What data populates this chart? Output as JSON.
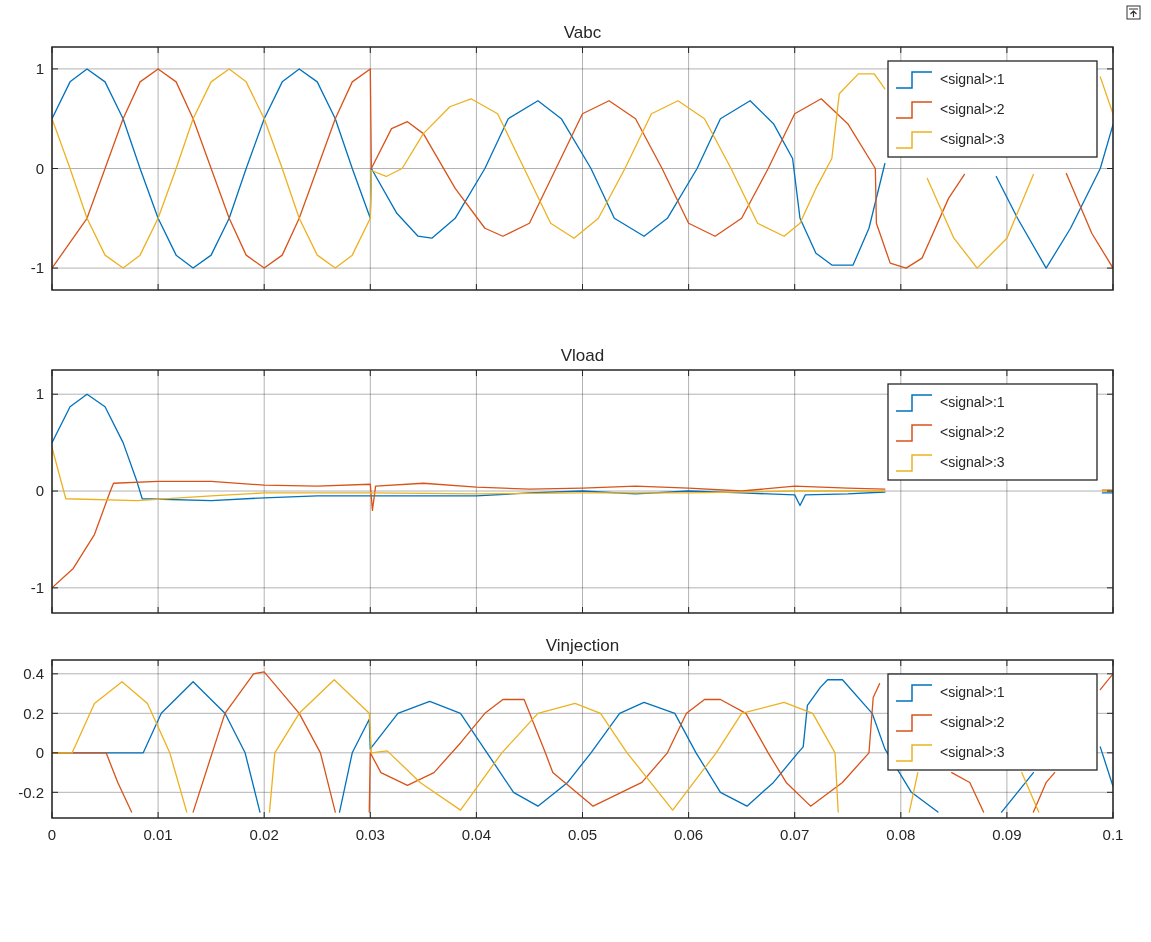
{
  "chart_data": [
    {
      "type": "line",
      "title": "Vabc",
      "xlim": [
        0,
        0.1
      ],
      "xticks": [
        0,
        0.01,
        0.02,
        0.03,
        0.04,
        0.05,
        0.06,
        0.07,
        0.08,
        0.09,
        0.1
      ],
      "ylim": [
        -1.22,
        1.22
      ],
      "yticks": [
        -1,
        0,
        1
      ],
      "grid": true,
      "legend": "top right",
      "tick_labels": "y",
      "series": [
        {
          "name": "<signal>:1",
          "color": "#0072bd",
          "x": [
            0,
            0.0017,
            0.0033,
            0.005,
            0.0067,
            0.0083,
            0.01,
            0.0117,
            0.0133,
            0.015,
            0.0167,
            0.0183,
            0.02,
            0.0217,
            0.0233,
            0.025,
            0.0267,
            0.0283,
            0.03,
            0.0301,
            0.0325,
            0.0345,
            0.0358,
            0.038,
            0.0408,
            0.043,
            0.0458,
            0.048,
            0.0508,
            0.053,
            0.0558,
            0.058,
            0.0608,
            0.063,
            0.0658,
            0.068,
            0.0698,
            0.0705,
            0.072,
            0.0735,
            0.0755,
            0.077,
            0.0785,
            0.084,
            0.089,
            0.091,
            0.0937,
            0.096,
            0.0988,
            0.1
          ],
          "values": [
            0.5,
            0.87,
            1,
            0.87,
            0.5,
            0,
            -0.5,
            -0.87,
            -1,
            -0.87,
            -0.5,
            0,
            0.5,
            0.87,
            1,
            0.87,
            0.5,
            0,
            -0.5,
            0,
            -0.45,
            -0.68,
            -0.7,
            -0.5,
            0,
            0.5,
            0.68,
            0.5,
            0,
            -0.5,
            -0.68,
            -0.5,
            0,
            0.5,
            0.68,
            0.45,
            0.1,
            -0.5,
            -0.85,
            -0.97,
            -0.97,
            -0.6,
            0.05,
            null,
            -0.08,
            -0.5,
            -1,
            -0.6,
            0,
            0.44
          ]
        },
        {
          "name": "<signal>:2",
          "color": "#d95319",
          "x": [
            0,
            0.0033,
            0.005,
            0.0067,
            0.0083,
            0.01,
            0.0117,
            0.0133,
            0.015,
            0.0167,
            0.0183,
            0.02,
            0.0217,
            0.0233,
            0.025,
            0.0267,
            0.0283,
            0.03,
            0.0301,
            0.032,
            0.0335,
            0.035,
            0.038,
            0.0408,
            0.0425,
            0.045,
            0.0475,
            0.05,
            0.0525,
            0.055,
            0.0575,
            0.06,
            0.0625,
            0.065,
            0.0675,
            0.07,
            0.0725,
            0.075,
            0.0776,
            0.0777,
            0.079,
            0.0805,
            0.082,
            0.0845,
            0.086,
            0.09,
            0.0956,
            0.098,
            0.1
          ],
          "values": [
            -1,
            -0.5,
            0,
            0.5,
            0.87,
            1,
            0.87,
            0.5,
            0,
            -0.5,
            -0.87,
            -1,
            -0.87,
            -0.5,
            0,
            0.5,
            0.87,
            1,
            0,
            0.4,
            0.47,
            0.35,
            -0.2,
            -0.6,
            -0.68,
            -0.55,
            0,
            0.55,
            0.68,
            0.5,
            0,
            -0.55,
            -0.68,
            -0.5,
            0,
            0.55,
            0.7,
            0.45,
            0,
            -0.55,
            -0.95,
            -1,
            -0.9,
            -0.3,
            -0.06,
            null,
            -0.05,
            -0.65,
            -1
          ]
        },
        {
          "name": "<signal>:3",
          "color": "#edb120",
          "x": [
            0,
            0.0017,
            0.0033,
            0.005,
            0.0067,
            0.0083,
            0.01,
            0.0117,
            0.0133,
            0.015,
            0.0167,
            0.0183,
            0.02,
            0.0217,
            0.0233,
            0.025,
            0.0267,
            0.0283,
            0.03,
            0.0301,
            0.0315,
            0.033,
            0.035,
            0.0375,
            0.0395,
            0.042,
            0.0445,
            0.047,
            0.0492,
            0.0515,
            0.054,
            0.0565,
            0.059,
            0.0615,
            0.064,
            0.0665,
            0.069,
            0.0705,
            0.072,
            0.0735,
            0.0742,
            0.076,
            0.0775,
            0.0785,
            0.08,
            0.0825,
            0.085,
            0.0872,
            0.09,
            0.0925,
            0.095,
            0.0988,
            0.1
          ],
          "values": [
            0.5,
            0,
            -0.5,
            -0.87,
            -1,
            -0.87,
            -0.5,
            0,
            0.5,
            0.87,
            1,
            0.87,
            0.5,
            0,
            -0.5,
            -0.87,
            -1,
            -0.87,
            -0.5,
            -0.02,
            -0.08,
            0,
            0.35,
            0.62,
            0.7,
            0.55,
            0,
            -0.55,
            -0.7,
            -0.5,
            0,
            0.55,
            0.68,
            0.5,
            0,
            -0.55,
            -0.68,
            -0.55,
            -0.2,
            0.1,
            0.75,
            0.95,
            0.95,
            0.8,
            null,
            -0.1,
            -0.7,
            -1,
            -0.7,
            -0.06,
            null,
            0.92,
            0.55
          ]
        }
      ]
    },
    {
      "type": "line",
      "title": "Vload",
      "xlim": [
        0,
        0.1
      ],
      "xticks": [
        0,
        0.01,
        0.02,
        0.03,
        0.04,
        0.05,
        0.06,
        0.07,
        0.08,
        0.09,
        0.1
      ],
      "ylim": [
        -1.26,
        1.25
      ],
      "yticks": [
        -1,
        0,
        1
      ],
      "grid": true,
      "legend": "top right",
      "tick_labels": "y",
      "series": [
        {
          "name": "<signal>:1",
          "color": "#0072bd",
          "x": [
            0,
            0.0017,
            0.0033,
            0.005,
            0.0067,
            0.008,
            0.0085,
            0.015,
            0.02,
            0.025,
            0.03,
            0.035,
            0.04,
            0.045,
            0.05,
            0.055,
            0.06,
            0.065,
            0.07,
            0.0705,
            0.071,
            0.075,
            0.0785,
            0.09,
            0.099,
            0.1
          ],
          "values": [
            0.5,
            0.87,
            1,
            0.87,
            0.5,
            0.1,
            -0.08,
            -0.1,
            -0.07,
            -0.05,
            -0.05,
            -0.05,
            -0.05,
            -0.02,
            0,
            -0.03,
            0,
            -0.02,
            -0.04,
            -0.15,
            -0.04,
            -0.03,
            -0.01,
            null,
            -0.02,
            -0.02
          ]
        },
        {
          "name": "<signal>:2",
          "color": "#d95319",
          "x": [
            0,
            0.002,
            0.004,
            0.0055,
            0.0058,
            0.01,
            0.015,
            0.02,
            0.025,
            0.03,
            0.0302,
            0.0305,
            0.035,
            0.04,
            0.045,
            0.05,
            0.055,
            0.06,
            0.065,
            0.07,
            0.075,
            0.0785,
            0.09,
            0.099,
            0.1
          ],
          "values": [
            -1,
            -0.8,
            -0.45,
            0,
            0.08,
            0.1,
            0.1,
            0.06,
            0.05,
            0.07,
            -0.2,
            0.05,
            0.08,
            0.04,
            0.02,
            0.03,
            0.05,
            0.03,
            0,
            0.05,
            0.03,
            0.02,
            null,
            0.01,
            0.01
          ]
        },
        {
          "name": "<signal>:3",
          "color": "#edb120",
          "x": [
            0,
            0.0013,
            0.008,
            0.015,
            0.02,
            0.03,
            0.04,
            0.05,
            0.06,
            0.07,
            0.0785,
            0.09,
            0.099,
            0.1
          ],
          "values": [
            0.45,
            -0.08,
            -0.1,
            -0.05,
            -0.02,
            -0.02,
            -0.03,
            -0.02,
            -0.02,
            0,
            0,
            null,
            0,
            0
          ]
        }
      ]
    },
    {
      "type": "line",
      "title": "Vinjection",
      "xlim": [
        0,
        0.1
      ],
      "xticks": [
        0,
        0.01,
        0.02,
        0.03,
        0.04,
        0.05,
        0.06,
        0.07,
        0.08,
        0.09,
        0.1
      ],
      "ylim": [
        -0.33,
        0.47
      ],
      "yticks": [
        -0.2,
        0,
        0.2,
        0.4
      ],
      "grid": true,
      "legend": "top right",
      "series": [
        {
          "name": "<signal>:1",
          "color": "#0072bd",
          "x": [
            0,
            0.0086,
            0.0103,
            0.0133,
            0.0163,
            0.0182,
            0.0196,
            0.021,
            0.0271,
            0.0283,
            0.0299,
            0.03,
            0.0326,
            0.0356,
            0.0385,
            0.041,
            0.0435,
            0.0458,
            0.0486,
            0.0508,
            0.0535,
            0.0558,
            0.0587,
            0.0607,
            0.063,
            0.0655,
            0.068,
            0.0703,
            0.0708,
            0.0712,
            0.0724,
            0.0731,
            0.0745,
            0.0773,
            0.0785,
            0.081,
            0.0835,
            0.086,
            0.0895,
            0.0925,
            0.095,
            0.0988,
            0.1
          ],
          "values": [
            0,
            0,
            0.2,
            0.36,
            0.2,
            0,
            -0.3,
            null,
            -0.3,
            0,
            0.17,
            0.02,
            0.2,
            0.26,
            0.2,
            0,
            -0.2,
            -0.27,
            -0.15,
            0,
            0.2,
            0.255,
            0.2,
            0,
            -0.2,
            -0.27,
            -0.15,
            0,
            0.03,
            0.24,
            0.33,
            0.37,
            0.37,
            0.2,
            0.02,
            -0.2,
            -0.3,
            null,
            -0.3,
            -0.1,
            null,
            0.03,
            -0.17
          ]
        },
        {
          "name": "<signal>:2",
          "color": "#d95319",
          "x": [
            0,
            0.0051,
            0.0062,
            0.0075,
            0.01,
            0.0133,
            0.0163,
            0.019,
            0.02,
            0.0233,
            0.0253,
            0.0267,
            0.028,
            0.0299,
            0.03,
            0.031,
            0.0335,
            0.036,
            0.0385,
            0.0408,
            0.0425,
            0.0445,
            0.0465,
            0.0472,
            0.051,
            0.0556,
            0.058,
            0.0598,
            0.0615,
            0.063,
            0.0654,
            0.0675,
            0.0692,
            0.0715,
            0.0745,
            0.077,
            0.0774,
            0.078,
            0.082,
            0.0848,
            0.0865,
            0.0878,
            0.09,
            0.0925,
            0.0937,
            0.0945,
            0.097,
            0.0988,
            0.1
          ],
          "values": [
            0,
            0,
            -0.15,
            -0.3,
            null,
            -0.3,
            0.2,
            0.4,
            0.41,
            0.2,
            0,
            -0.3,
            null,
            -0.3,
            0,
            -0.1,
            -0.165,
            -0.1,
            0.05,
            0.2,
            0.27,
            0.27,
            0,
            -0.1,
            -0.27,
            -0.15,
            0,
            0.2,
            0.27,
            0.27,
            0.2,
            0,
            -0.15,
            -0.27,
            -0.15,
            0,
            0.28,
            0.35,
            null,
            -0.1,
            -0.15,
            -0.3,
            null,
            -0.3,
            -0.15,
            -0.1,
            null,
            0.32,
            0.4
          ]
        },
        {
          "name": "<signal>:3",
          "color": "#edb120",
          "x": [
            0,
            0.0019,
            0.004,
            0.0066,
            0.009,
            0.0111,
            0.0127,
            0.016,
            0.0205,
            0.021,
            0.0233,
            0.0266,
            0.0299,
            0.0301,
            0.0316,
            0.0347,
            0.0385,
            0.0424,
            0.0458,
            0.0493,
            0.0517,
            0.0542,
            0.0585,
            0.0626,
            0.065,
            0.069,
            0.0717,
            0.0738,
            0.0741,
            0.077,
            0.0808,
            0.0816,
            0.087,
            0.0914,
            0.093
          ],
          "values": [
            0,
            0,
            0.25,
            0.36,
            0.25,
            0,
            -0.3,
            null,
            -0.3,
            0,
            0.2,
            0.37,
            0.2,
            0,
            0.01,
            -0.15,
            -0.29,
            0,
            0.2,
            0.25,
            0.2,
            0,
            -0.29,
            0,
            0.2,
            0.255,
            0.2,
            0,
            -0.3,
            null,
            -0.3,
            -0.1,
            null,
            -0.1,
            -0.3
          ]
        }
      ]
    }
  ]
}
